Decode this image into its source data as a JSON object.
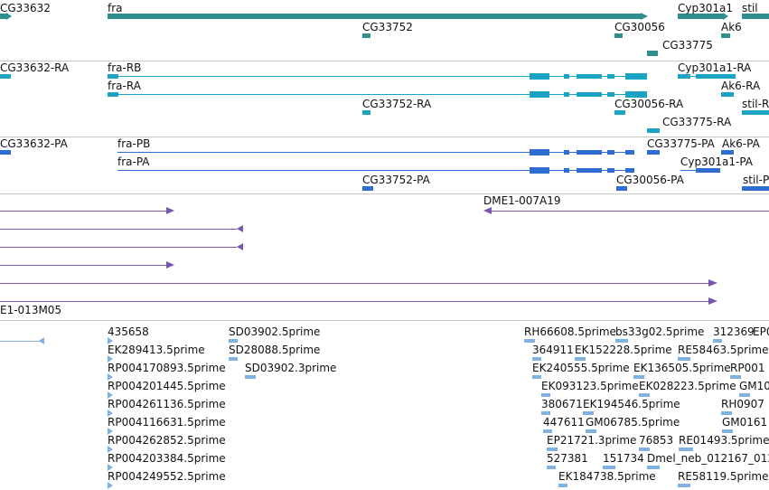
{
  "colors": {
    "gene": "#2e8f8f",
    "mrna": "#1aa3c2",
    "protein": "#2f6dd0",
    "clone": "#7a55b0",
    "est": "#7fb2e0",
    "divider": "#c8c8c8"
  },
  "gene_track": {
    "labels": [
      "CG33632",
      "fra",
      "Cyp301a1",
      "stil",
      "CG33752",
      "CG30056",
      "Ak6",
      "CG33775"
    ]
  },
  "mrna_track": {
    "labels": [
      "CG33632-RA",
      "fra-RB",
      "Cyp301a1-RA",
      "fra-RA",
      "Ak6-RA",
      "CG33752-RA",
      "CG30056-RA",
      "stil-R",
      "CG33775-RA"
    ]
  },
  "protein_track": {
    "labels": [
      "CG33632-PA",
      "fra-PB",
      "CG33775-PA",
      "Ak6-PA",
      "fra-PA",
      "Cyp301a1-PA",
      "CG33752-PA",
      "CG30056-PA",
      "stil-P"
    ]
  },
  "clone_track": {
    "labels": [
      "DME1-007A19",
      "E1-013M05"
    ]
  },
  "est_track": {
    "labels": [
      "435658",
      "SD03902.5prime",
      "RH66608.5prime",
      "bs33g02.5prime",
      "312369",
      "EP0",
      "EK289413.5prime",
      "SD28088.5prime",
      "364911",
      "EK152228.5prime",
      "RE58463.5prime",
      "RP004170893.5prime",
      "SD03902.3prime",
      "EK240555.5prime",
      "EK136505.5prime",
      "RP001",
      "RP004201445.5prime",
      "EK093123.5prime",
      "EK028223.5prime",
      "GM10",
      "RP004261136.5prime",
      "380671",
      "EK194546.5prime",
      "RH0907",
      "RP004116631.5prime",
      "447611",
      "GM06785.5prime",
      "GM0161",
      "RP004262852.5prime",
      "EP21721.3prime",
      "76853",
      "RE01493.5prime",
      "RP004203384.5prime",
      "527381",
      "151734",
      "Dmel_neb_012167_012",
      "RP004249552.5prime",
      "EK184738.5prime",
      "RE58119.5prime"
    ]
  }
}
